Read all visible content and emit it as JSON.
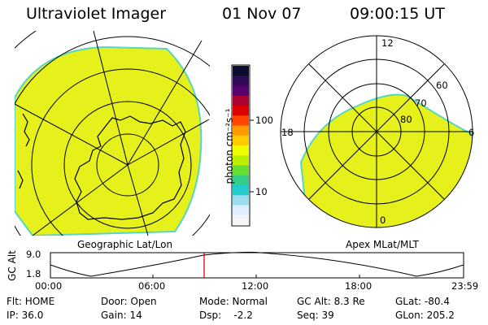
{
  "header": {
    "instrument": "Ultraviolet Imager",
    "date": "01 Nov 07",
    "time": "09:00:15 UT"
  },
  "geo_panel": {
    "caption": "Geographic Lat/Lon"
  },
  "apex_panel": {
    "caption": "Apex MLat/MLT",
    "mlt_labels": [
      "12",
      "18",
      "6",
      "0"
    ],
    "mlat_labels": [
      "60",
      "70",
      "80"
    ]
  },
  "colorbar": {
    "label": "photon cm⁻²s⁻¹",
    "ticks": [
      "100",
      "10"
    ],
    "colors": [
      "#0c0c33",
      "#330a55",
      "#5a006e",
      "#aa0033",
      "#dd0000",
      "#ff4400",
      "#ff9900",
      "#ffcc00",
      "#eeff00",
      "#bbee00",
      "#66dd33",
      "#33cc88",
      "#22cccc",
      "#99ddee",
      "#ddeeff",
      "#f4f4f4"
    ]
  },
  "altitude_plot": {
    "ylabel": "GC Alt",
    "ymax": "9.0",
    "ymin": "1.8",
    "x_ticks": [
      "00:00",
      "06:00",
      "12:00",
      "18:00",
      "23:59"
    ],
    "current_time_marker": "09:00",
    "marker_color": "#dd0000"
  },
  "info": {
    "flt": "Flt: HOME",
    "door": "Door: Open",
    "mode": "Mode: Normal",
    "gc_alt": "GC Alt: 8.3 Re",
    "glat": "GLat: -80.4",
    "ip": "IP: 36.0",
    "gain": "Gain: 14",
    "dsp": "Dsp:    -2.2",
    "seq": "Seq: 39",
    "glon": "GLon: 205.2"
  },
  "colors": {
    "emission": "#e6f11c",
    "limb": "#57d6c2",
    "land": "#000000"
  }
}
